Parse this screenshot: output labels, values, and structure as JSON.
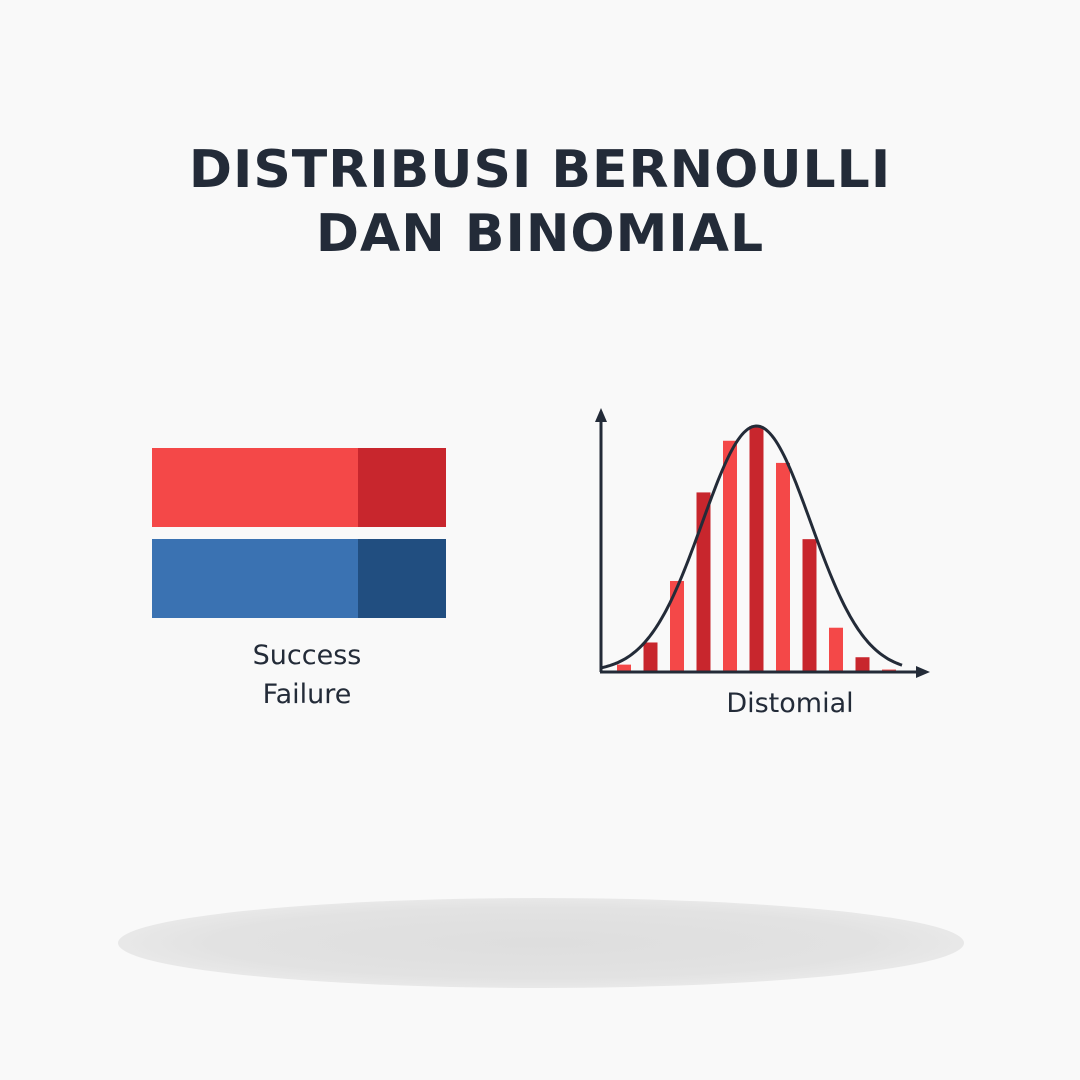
{
  "title": {
    "line1": "DISTRIBUSI BERNOULLI",
    "line2": "DAN BINOMIAL"
  },
  "colors": {
    "text": "#232b38",
    "success_light": "#f44848",
    "success_dark": "#c8262d",
    "failure_light": "#3a72b2",
    "failure_dark": "#214e80"
  },
  "chart_data": [
    {
      "type": "bar",
      "orientation": "horizontal-stacked",
      "categories": [
        "Success",
        "Failure"
      ],
      "series": [
        {
          "values": [
            0.7,
            0.7
          ]
        },
        {
          "values": [
            0.3,
            0.3
          ]
        }
      ],
      "labels": [
        "Success",
        "Failure"
      ]
    },
    {
      "type": "bar",
      "xlabel": "Distomial",
      "x": [
        1,
        2,
        3,
        4,
        5,
        6,
        7,
        8,
        9,
        10,
        11
      ],
      "values": [
        0.03,
        0.12,
        0.37,
        0.73,
        0.94,
        1.0,
        0.85,
        0.54,
        0.18,
        0.06,
        0.01
      ],
      "overlay_curve": "normal",
      "ylim": [
        0,
        1.1
      ]
    }
  ]
}
